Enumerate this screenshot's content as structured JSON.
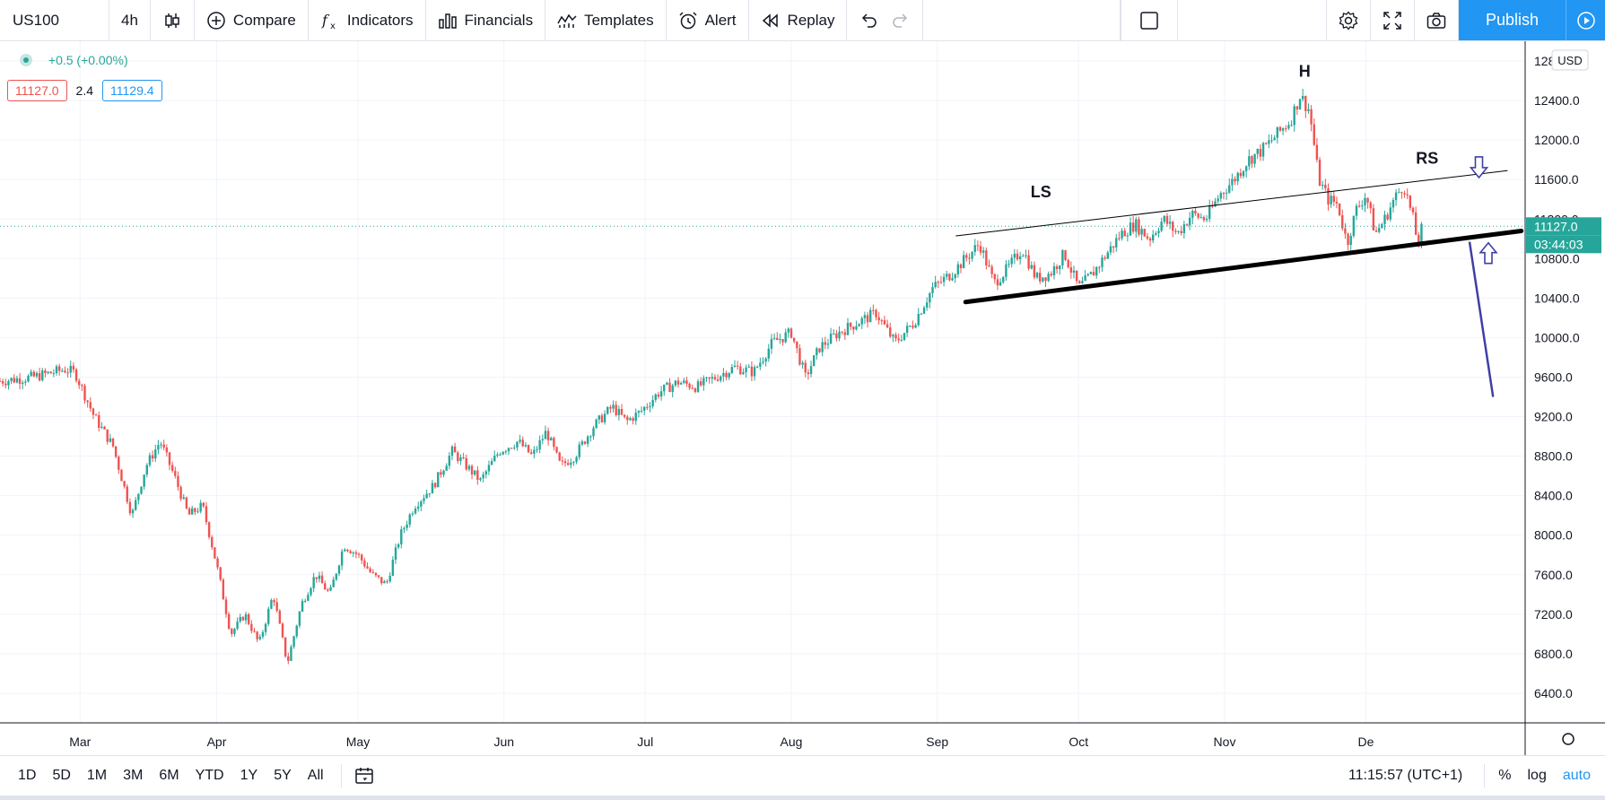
{
  "toolbar": {
    "symbol": "US100",
    "interval": "4h",
    "compare": "Compare",
    "indicators": "Indicators",
    "financials": "Financials",
    "templates": "Templates",
    "alert": "Alert",
    "replay": "Replay",
    "publish": "Publish"
  },
  "legend": {
    "change": "+0.5 (+0.00%)",
    "bid": "11127.0",
    "spread": "2.4",
    "ask": "11129.4"
  },
  "price_axis": {
    "currency": "USD",
    "last_price": "11127.0",
    "countdown": "03:44:03"
  },
  "bottom": {
    "ranges": [
      "1D",
      "5D",
      "1M",
      "3M",
      "6M",
      "YTD",
      "1Y",
      "5Y",
      "All"
    ],
    "clock": "11:15:57 (UTC+1)",
    "percent": "%",
    "log": "log",
    "auto": "auto"
  },
  "colors": {
    "up": "#26a69a",
    "down": "#ef5350",
    "accent": "#2196f3",
    "drawing": "#3f3fa5"
  },
  "chart_data": {
    "type": "candlestick",
    "symbol": "US100",
    "interval": "4h",
    "ylim": [
      6100,
      13000
    ],
    "yticks": [
      6400,
      6800,
      7200,
      7600,
      8000,
      8400,
      8800,
      9200,
      9600,
      10000,
      10400,
      10800,
      11200,
      11600,
      12000,
      12400,
      12800
    ],
    "xticks": [
      "Mar",
      "Apr",
      "May",
      "Jun",
      "Jul",
      "Aug",
      "Sep",
      "Oct",
      "Nov",
      "De"
    ],
    "grid": true,
    "current_price": 11127.0,
    "price_path": [
      {
        "d": 0,
        "p": 9560
      },
      {
        "d": 7,
        "p": 9600
      },
      {
        "d": 14,
        "p": 9680
      },
      {
        "d": 16,
        "p": 9640
      },
      {
        "d": 20,
        "p": 9200
      },
      {
        "d": 24,
        "p": 8900
      },
      {
        "d": 28,
        "p": 8200
      },
      {
        "d": 31,
        "p": 8700
      },
      {
        "d": 34,
        "p": 8950
      },
      {
        "d": 37,
        "p": 8600
      },
      {
        "d": 40,
        "p": 8200
      },
      {
        "d": 43,
        "p": 8300
      },
      {
        "d": 46,
        "p": 7700
      },
      {
        "d": 49,
        "p": 7000
      },
      {
        "d": 52,
        "p": 7200
      },
      {
        "d": 55,
        "p": 6900
      },
      {
        "d": 58,
        "p": 7400
      },
      {
        "d": 61,
        "p": 6700
      },
      {
        "d": 64,
        "p": 7300
      },
      {
        "d": 67,
        "p": 7600
      },
      {
        "d": 70,
        "p": 7400
      },
      {
        "d": 73,
        "p": 7900
      },
      {
        "d": 76,
        "p": 7800
      },
      {
        "d": 79,
        "p": 7600
      },
      {
        "d": 82,
        "p": 7500
      },
      {
        "d": 85,
        "p": 8000
      },
      {
        "d": 88,
        "p": 8300
      },
      {
        "d": 92,
        "p": 8500
      },
      {
        "d": 96,
        "p": 8850
      },
      {
        "d": 99,
        "p": 8700
      },
      {
        "d": 102,
        "p": 8550
      },
      {
        "d": 106,
        "p": 8850
      },
      {
        "d": 110,
        "p": 8950
      },
      {
        "d": 113,
        "p": 8800
      },
      {
        "d": 116,
        "p": 9050
      },
      {
        "d": 119,
        "p": 8700
      },
      {
        "d": 122,
        "p": 8800
      },
      {
        "d": 126,
        "p": 9100
      },
      {
        "d": 130,
        "p": 9300
      },
      {
        "d": 133,
        "p": 9150
      },
      {
        "d": 136,
        "p": 9250
      },
      {
        "d": 140,
        "p": 9450
      },
      {
        "d": 144,
        "p": 9550
      },
      {
        "d": 148,
        "p": 9500
      },
      {
        "d": 152,
        "p": 9600
      },
      {
        "d": 156,
        "p": 9700
      },
      {
        "d": 160,
        "p": 9650
      },
      {
        "d": 164,
        "p": 9950
      },
      {
        "d": 168,
        "p": 10050
      },
      {
        "d": 171,
        "p": 9600
      },
      {
        "d": 174,
        "p": 9900
      },
      {
        "d": 178,
        "p": 10050
      },
      {
        "d": 182,
        "p": 10150
      },
      {
        "d": 186,
        "p": 10250
      },
      {
        "d": 190,
        "p": 9950
      },
      {
        "d": 194,
        "p": 10150
      },
      {
        "d": 198,
        "p": 10500
      },
      {
        "d": 202,
        "p": 10650
      },
      {
        "d": 205,
        "p": 10800
      },
      {
        "d": 208,
        "p": 10950
      },
      {
        "d": 211,
        "p": 10550
      },
      {
        "d": 214,
        "p": 10700
      },
      {
        "d": 217,
        "p": 10900
      },
      {
        "d": 220,
        "p": 10600
      },
      {
        "d": 223,
        "p": 10650
      },
      {
        "d": 226,
        "p": 10850
      },
      {
        "d": 229,
        "p": 10500
      },
      {
        "d": 232,
        "p": 10650
      },
      {
        "d": 235,
        "p": 10850
      },
      {
        "d": 238,
        "p": 11050
      },
      {
        "d": 241,
        "p": 11150
      },
      {
        "d": 244,
        "p": 11000
      },
      {
        "d": 247,
        "p": 11200
      },
      {
        "d": 250,
        "p": 11050
      },
      {
        "d": 253,
        "p": 11250
      },
      {
        "d": 256,
        "p": 11200
      },
      {
        "d": 259,
        "p": 11450
      },
      {
        "d": 262,
        "p": 11600
      },
      {
        "d": 265,
        "p": 11800
      },
      {
        "d": 268,
        "p": 11900
      },
      {
        "d": 271,
        "p": 12050
      },
      {
        "d": 274,
        "p": 12200
      },
      {
        "d": 276,
        "p": 12450
      },
      {
        "d": 278,
        "p": 12300
      },
      {
        "d": 280,
        "p": 11600
      },
      {
        "d": 282,
        "p": 11400
      },
      {
        "d": 284,
        "p": 11350
      },
      {
        "d": 286,
        "p": 10950
      },
      {
        "d": 288,
        "p": 11300
      },
      {
        "d": 290,
        "p": 11450
      },
      {
        "d": 292,
        "p": 11050
      },
      {
        "d": 294,
        "p": 11200
      },
      {
        "d": 296,
        "p": 11400
      },
      {
        "d": 298,
        "p": 11550
      },
      {
        "d": 300,
        "p": 11200
      },
      {
        "d": 301,
        "p": 10950
      },
      {
        "d": 302,
        "p": 11127
      }
    ],
    "annotations": [
      {
        "type": "label",
        "text": "LS",
        "d": 221,
        "p": 11420
      },
      {
        "type": "label",
        "text": "H",
        "d": 277,
        "p": 12640
      },
      {
        "type": "label",
        "text": "RS",
        "d": 303,
        "p": 11760
      },
      {
        "type": "trendline",
        "name": "upper-channel-line",
        "from": {
          "d": 203,
          "p": 11030
        },
        "to": {
          "d": 320,
          "p": 11690
        }
      },
      {
        "type": "trendline",
        "name": "neckline",
        "from": {
          "d": 205,
          "p": 10360
        },
        "to": {
          "d": 323,
          "p": 11080
        }
      },
      {
        "type": "arrow",
        "name": "target-projection",
        "from": {
          "d": 312,
          "p": 10970
        },
        "to": {
          "d": 317,
          "p": 9400
        }
      },
      {
        "type": "arrow-down",
        "name": "resistance-arrow",
        "d": 314,
        "p": 11720
      },
      {
        "type": "arrow-up",
        "name": "support-arrow",
        "d": 316,
        "p": 10860
      }
    ]
  }
}
